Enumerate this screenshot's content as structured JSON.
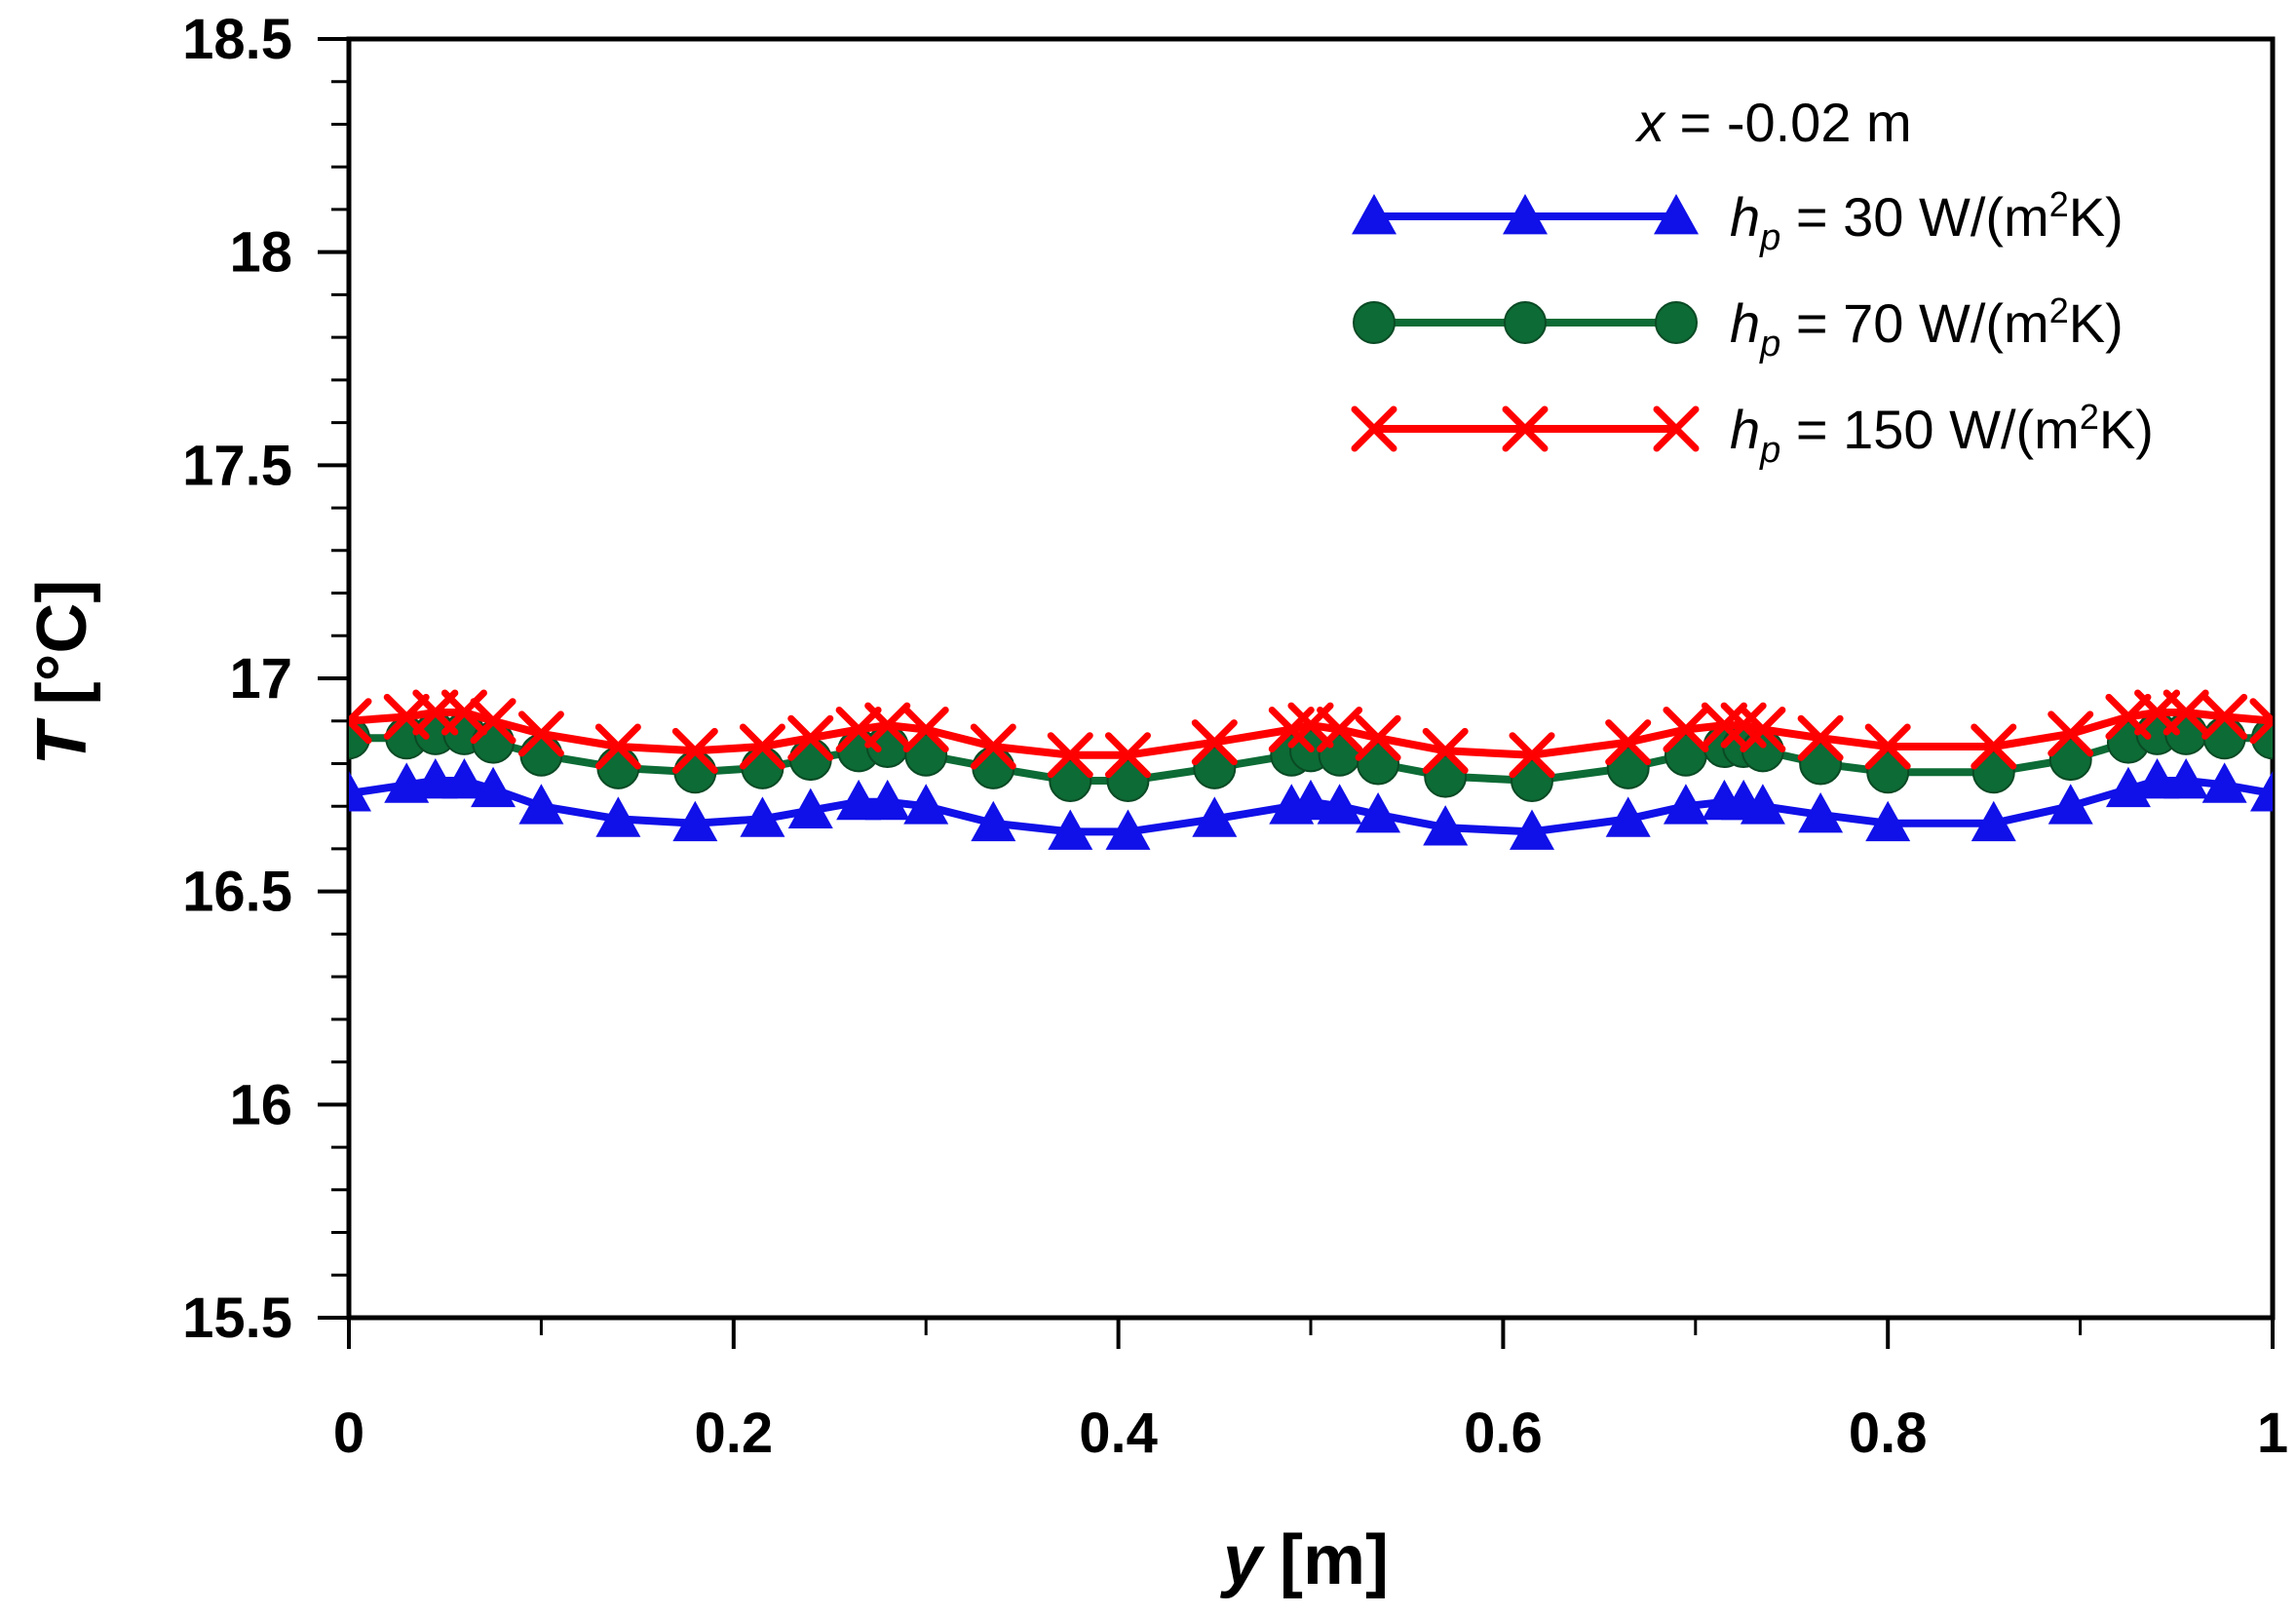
{
  "chart_data": {
    "type": "line",
    "title": "",
    "xlabel": "y [m]",
    "xlabel_var": "y",
    "xlabel_unit": "[m]",
    "ylabel": "T [°C]",
    "ylabel_var": "T",
    "ylabel_unit": "[°C]",
    "xlim": [
      0,
      1
    ],
    "ylim": [
      15.5,
      18.5
    ],
    "xticks": [
      0,
      0.2,
      0.4,
      0.6,
      0.8,
      1
    ],
    "xtick_labels": [
      "0",
      "0.2",
      "0.4",
      "0.6",
      "0.8",
      "1"
    ],
    "yticks": [
      15.5,
      16,
      16.5,
      17,
      17.5,
      18,
      18.5
    ],
    "ytick_labels": [
      "15.5",
      "16",
      "16.5",
      "17",
      "17.5",
      "18",
      "18.5"
    ],
    "annotation": "x = -0.02 m",
    "annotation_var": "x",
    "annotation_rest": " = -0.02 m",
    "legend_position": "top-right",
    "series": [
      {
        "name": "h_p = 30 W/(m2K)",
        "label_var": "h",
        "label_sub": "p",
        "label_main": " = 30 W/(m",
        "label_sup": "2",
        "label_end": "K)",
        "color": "#1010e8",
        "marker": "triangle",
        "x": [
          0,
          0.03,
          0.045,
          0.06,
          0.075,
          0.1,
          0.14,
          0.18,
          0.215,
          0.24,
          0.265,
          0.28,
          0.3,
          0.335,
          0.375,
          0.405,
          0.45,
          0.49,
          0.5,
          0.515,
          0.535,
          0.57,
          0.615,
          0.665,
          0.695,
          0.715,
          0.725,
          0.735,
          0.765,
          0.8,
          0.855,
          0.895,
          0.925,
          0.94,
          0.955,
          0.975,
          1
        ],
        "y": [
          16.73,
          16.75,
          16.76,
          16.76,
          16.74,
          16.7,
          16.67,
          16.66,
          16.67,
          16.69,
          16.71,
          16.71,
          16.7,
          16.66,
          16.64,
          16.64,
          16.67,
          16.7,
          16.71,
          16.7,
          16.68,
          16.65,
          16.64,
          16.67,
          16.7,
          16.71,
          16.71,
          16.7,
          16.68,
          16.66,
          16.66,
          16.7,
          16.74,
          16.76,
          16.76,
          16.75,
          16.73
        ]
      },
      {
        "name": "h_p = 70 W/(m2K)",
        "label_var": "h",
        "label_sub": "p",
        "label_main": " = 70 W/(m",
        "label_sup": "2",
        "label_end": "K)",
        "color": "#0d6b35",
        "marker": "circle",
        "x": [
          0,
          0.03,
          0.045,
          0.06,
          0.075,
          0.1,
          0.14,
          0.18,
          0.215,
          0.24,
          0.265,
          0.28,
          0.3,
          0.335,
          0.375,
          0.405,
          0.45,
          0.49,
          0.5,
          0.515,
          0.535,
          0.57,
          0.615,
          0.665,
          0.695,
          0.715,
          0.725,
          0.735,
          0.765,
          0.8,
          0.855,
          0.895,
          0.925,
          0.94,
          0.955,
          0.975,
          1
        ],
        "y": [
          16.86,
          16.86,
          16.87,
          16.87,
          16.85,
          16.82,
          16.79,
          16.78,
          16.79,
          16.81,
          16.83,
          16.84,
          16.82,
          16.79,
          16.76,
          16.76,
          16.79,
          16.82,
          16.83,
          16.82,
          16.8,
          16.77,
          16.76,
          16.79,
          16.82,
          16.84,
          16.84,
          16.83,
          16.8,
          16.78,
          16.78,
          16.81,
          16.85,
          16.87,
          16.87,
          16.86,
          16.86
        ]
      },
      {
        "name": "h_p = 150 W/(m2K)",
        "label_var": "h",
        "label_sub": "p",
        "label_main": " = 150 W/(m",
        "label_sup": "2",
        "label_end": "K)",
        "color": "#ff0000",
        "marker": "x",
        "x": [
          0,
          0.03,
          0.045,
          0.06,
          0.075,
          0.1,
          0.14,
          0.18,
          0.215,
          0.24,
          0.265,
          0.28,
          0.3,
          0.335,
          0.375,
          0.405,
          0.45,
          0.49,
          0.5,
          0.515,
          0.535,
          0.57,
          0.615,
          0.665,
          0.695,
          0.715,
          0.725,
          0.735,
          0.765,
          0.8,
          0.855,
          0.895,
          0.925,
          0.94,
          0.955,
          0.975,
          1
        ],
        "y": [
          16.9,
          16.91,
          16.92,
          16.92,
          16.9,
          16.87,
          16.84,
          16.83,
          16.84,
          16.86,
          16.88,
          16.89,
          16.88,
          16.84,
          16.82,
          16.82,
          16.85,
          16.88,
          16.89,
          16.88,
          16.86,
          16.83,
          16.82,
          16.85,
          16.88,
          16.89,
          16.89,
          16.88,
          16.86,
          16.84,
          16.84,
          16.87,
          16.91,
          16.92,
          16.92,
          16.91,
          16.9
        ]
      }
    ]
  }
}
